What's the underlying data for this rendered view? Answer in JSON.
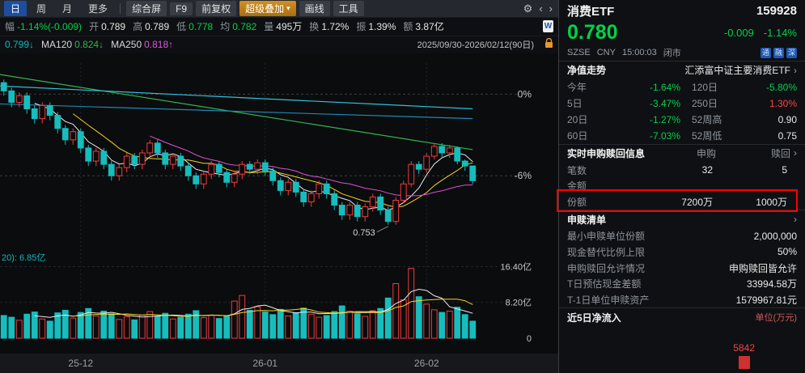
{
  "toolbar": {
    "tabs": [
      {
        "label": "日"
      },
      {
        "label": "周"
      },
      {
        "label": "月"
      },
      {
        "label": "更多"
      }
    ],
    "buttons": {
      "composite": "综合屏",
      "f9": "F9",
      "forward_adjust": "前复权",
      "super_overlay": "超级叠加",
      "draw_line": "画线",
      "tools": "工具"
    }
  },
  "stats": [
    {
      "label": "幅",
      "value": "-1.14%(-0.009)"
    },
    {
      "label": "开",
      "value": "0.789"
    },
    {
      "label": "高",
      "value": "0.789"
    },
    {
      "label": "低",
      "value": "0.778"
    },
    {
      "label": "均",
      "value": "0.782"
    },
    {
      "label": "量",
      "value": "495万"
    },
    {
      "label": "换",
      "value": "1.72%"
    },
    {
      "label": "振",
      "value": "1.39%"
    },
    {
      "label": "额",
      "value": "3.87亿"
    }
  ],
  "ma_bar": {
    "ma60": "0.799↓",
    "ma120_label": "MA120",
    "ma120": "0.824↓",
    "ma250_label": "MA250",
    "ma250": "0.818↑",
    "range": "2025/09/30-2026/02/12(90日)"
  },
  "chart_data": {
    "type": "candlestick",
    "title": "消费ETF 159928 日K线",
    "period": "2025/09/30-2026/02/12(90日)",
    "colors": {
      "up": "#f23a3a",
      "down": "#17bdbd"
    },
    "candles": [
      [
        0.84,
        0.842,
        0.832,
        0.835
      ],
      [
        0.835,
        0.837,
        0.825,
        0.828
      ],
      [
        0.828,
        0.834,
        0.825,
        0.832
      ],
      [
        0.832,
        0.834,
        0.821,
        0.824
      ],
      [
        0.824,
        0.826,
        0.815,
        0.818
      ],
      [
        0.818,
        0.828,
        0.815,
        0.826
      ],
      [
        0.826,
        0.828,
        0.817,
        0.82
      ],
      [
        0.82,
        0.822,
        0.809,
        0.812
      ],
      [
        0.812,
        0.814,
        0.802,
        0.805
      ],
      [
        0.805,
        0.812,
        0.802,
        0.81
      ],
      [
        0.81,
        0.812,
        0.797,
        0.8
      ],
      [
        0.8,
        0.802,
        0.789,
        0.792
      ],
      [
        0.792,
        0.8,
        0.789,
        0.798
      ],
      [
        0.798,
        0.8,
        0.787,
        0.79
      ],
      [
        0.79,
        0.792,
        0.78,
        0.783
      ],
      [
        0.783,
        0.79,
        0.78,
        0.788
      ],
      [
        0.788,
        0.797,
        0.785,
        0.795
      ],
      [
        0.795,
        0.797,
        0.787,
        0.79
      ],
      [
        0.79,
        0.799,
        0.787,
        0.797
      ],
      [
        0.797,
        0.805,
        0.794,
        0.803
      ],
      [
        0.803,
        0.805,
        0.794,
        0.797
      ],
      [
        0.797,
        0.799,
        0.787,
        0.79
      ],
      [
        0.79,
        0.797,
        0.787,
        0.795
      ],
      [
        0.795,
        0.797,
        0.786,
        0.789
      ],
      [
        0.789,
        0.791,
        0.78,
        0.783
      ],
      [
        0.783,
        0.785,
        0.775,
        0.778
      ],
      [
        0.778,
        0.786,
        0.775,
        0.784
      ],
      [
        0.784,
        0.792,
        0.781,
        0.79
      ],
      [
        0.79,
        0.792,
        0.782,
        0.785
      ],
      [
        0.785,
        0.787,
        0.776,
        0.779
      ],
      [
        0.779,
        0.786,
        0.776,
        0.784
      ],
      [
        0.784,
        0.792,
        0.781,
        0.79
      ],
      [
        0.79,
        0.792,
        0.784,
        0.787
      ],
      [
        0.787,
        0.793,
        0.784,
        0.791
      ],
      [
        0.791,
        0.793,
        0.783,
        0.786
      ],
      [
        0.786,
        0.788,
        0.777,
        0.78
      ],
      [
        0.78,
        0.782,
        0.771,
        0.774
      ],
      [
        0.774,
        0.781,
        0.771,
        0.779
      ],
      [
        0.779,
        0.781,
        0.77,
        0.773
      ],
      [
        0.773,
        0.775,
        0.764,
        0.767
      ],
      [
        0.767,
        0.774,
        0.764,
        0.772
      ],
      [
        0.772,
        0.78,
        0.769,
        0.778
      ],
      [
        0.778,
        0.78,
        0.769,
        0.772
      ],
      [
        0.772,
        0.774,
        0.762,
        0.765
      ],
      [
        0.765,
        0.767,
        0.756,
        0.759
      ],
      [
        0.759,
        0.767,
        0.756,
        0.765
      ],
      [
        0.765,
        0.767,
        0.755,
        0.758
      ],
      [
        0.758,
        0.766,
        0.755,
        0.764
      ],
      [
        0.764,
        0.772,
        0.761,
        0.77
      ],
      [
        0.77,
        0.772,
        0.759,
        0.762
      ],
      [
        0.762,
        0.764,
        0.753,
        0.755
      ],
      [
        0.755,
        0.77,
        0.753,
        0.768
      ],
      [
        0.768,
        0.78,
        0.766,
        0.778
      ],
      [
        0.778,
        0.792,
        0.776,
        0.79
      ],
      [
        0.79,
        0.792,
        0.784,
        0.787
      ],
      [
        0.787,
        0.797,
        0.785,
        0.795
      ],
      [
        0.795,
        0.803,
        0.793,
        0.801
      ],
      [
        0.801,
        0.803,
        0.794,
        0.797
      ],
      [
        0.797,
        0.802,
        0.794,
        0.8
      ],
      [
        0.8,
        0.801,
        0.79,
        0.792
      ],
      [
        0.792,
        0.793,
        0.786,
        0.789
      ],
      [
        0.789,
        0.789,
        0.778,
        0.78
      ]
    ],
    "volumes": [
      5.2,
      4.8,
      4.1,
      5.5,
      6.0,
      4.4,
      3.9,
      5.8,
      6.4,
      4.6,
      5.9,
      6.8,
      5.1,
      6.2,
      5.6,
      4.3,
      4.9,
      4.2,
      5.3,
      6.1,
      5.0,
      5.7,
      4.4,
      4.8,
      5.5,
      6.3,
      4.7,
      5.2,
      4.5,
      5.0,
      8.5,
      9.8,
      6.4,
      7.2,
      6.0,
      5.4,
      6.6,
      5.1,
      5.8,
      6.9,
      5.5,
      4.8,
      5.2,
      6.1,
      7.4,
      6.2,
      5.6,
      5.0,
      6.3,
      6.8,
      9.2,
      12.5,
      8.8,
      16.0,
      9.5,
      7.8,
      6.5,
      5.9,
      6.2,
      7.1,
      5.4,
      3.9
    ],
    "ma": [
      {
        "name": "MA5",
        "window": 5,
        "color": "#ededed"
      },
      {
        "name": "MA10",
        "window": 10,
        "color": "#f5d51c"
      },
      {
        "name": "MA20",
        "window": 20,
        "color": "#e04fd2"
      }
    ],
    "vol_ma": [
      {
        "name": "VMA5",
        "window": 5,
        "color": "#ededed"
      },
      {
        "name": "VMA10",
        "window": 10,
        "color": "#f5d51c"
      }
    ],
    "overlay_lines": [
      {
        "name": "MA60",
        "color": "#35b44e",
        "start": 0.845,
        "end": 0.799
      },
      {
        "name": "MA120",
        "color": "#2fc2da",
        "start": 0.838,
        "end": 0.824
      },
      {
        "name": "MA250",
        "color": "#1f88b4",
        "start": 0.827,
        "end": 0.818
      }
    ],
    "percent_lines": [
      {
        "label": "0%",
        "price": 0.833
      },
      {
        "label": "-6%",
        "price": 0.783
      }
    ],
    "volume_axis": {
      "ticks": [
        {
          "label": "16.40亿",
          "v": 16.4
        },
        {
          "label": "8.20亿",
          "v": 8.2
        },
        {
          "label": "0",
          "v": 0
        }
      ]
    },
    "x_labels": [
      {
        "label": "25-12",
        "i": 10
      },
      {
        "label": "26-01",
        "i": 34
      },
      {
        "label": "26-02",
        "i": 55
      }
    ],
    "low_label": {
      "text": "0.753",
      "index": 50
    },
    "vol_ma_label": "20): 6.85亿"
  },
  "panel": {
    "name": "消费ETF",
    "code": "159928",
    "price": "0.780",
    "change": "-0.009",
    "change_pct": "-1.14%",
    "exchange": "SZSE",
    "currency": "CNY",
    "time": "15:00:03",
    "status": "闭市",
    "badges": [
      "通",
      "融",
      "深"
    ],
    "fund_label": "净值走势",
    "fund_name": "汇添富中证主要消费ETF",
    "performance": [
      {
        "l": "今年",
        "v": "-1.64%"
      },
      {
        "l": "120日",
        "v": "-5.80%"
      },
      {
        "l": "5日",
        "v": "-3.47%"
      },
      {
        "l": "250日",
        "v": "1.30%"
      },
      {
        "l": "20日",
        "v": "-1.27%"
      },
      {
        "l": "52周高",
        "v": "0.90"
      },
      {
        "l": "60日",
        "v": "-7.03%"
      },
      {
        "l": "52周低",
        "v": "0.75"
      }
    ],
    "sub": {
      "title": "实时申购赎回信息",
      "col_a": "申购",
      "col_b": "赎回",
      "rows": [
        {
          "l": "笔数",
          "a": "32",
          "b": "5"
        },
        {
          "l": "金额",
          "a": "",
          "b": ""
        },
        {
          "l": "份额",
          "a": "7200万",
          "b": "1000万"
        }
      ]
    },
    "list": {
      "title": "申赎清单",
      "rows": [
        {
          "l": "最小申赎单位份额",
          "v": "2,000,000"
        },
        {
          "l": "现金替代比例上限",
          "v": "50%"
        },
        {
          "l": "申购赎回允许情况",
          "v": "申购赎回皆允许"
        },
        {
          "l": "T日预估现金差额",
          "v": "33994.58万"
        },
        {
          "l": "T-1日单位申赎资产",
          "v": "1579967.81元"
        }
      ]
    },
    "inflow": {
      "title": "近5日净流入",
      "unit": "单位(万元)",
      "value": "5842"
    }
  }
}
